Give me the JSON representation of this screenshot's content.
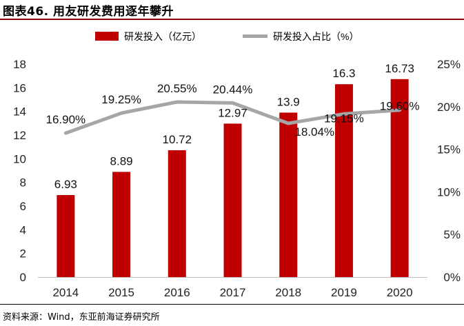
{
  "figure_title": "图表46.  用友研发费用逐年攀升",
  "source_note": "资料来源：Wind，东亚前海证券研究所",
  "chart_data": {
    "type": "bar",
    "categories": [
      "2014",
      "2015",
      "2016",
      "2017",
      "2018",
      "2019",
      "2020"
    ],
    "series": [
      {
        "name": "研发投入（亿元）",
        "type": "bar",
        "axis": "left",
        "values": [
          6.93,
          8.89,
          10.72,
          12.97,
          13.9,
          16.3,
          16.73
        ],
        "labels": [
          "6.93",
          "8.89",
          "10.72",
          "12.97",
          "13.9",
          "16.3",
          "16.73"
        ],
        "color": "#c00000"
      },
      {
        "name": "研发投入占比（%）",
        "type": "line",
        "axis": "right",
        "values": [
          16.9,
          19.25,
          20.55,
          20.44,
          18.04,
          19.15,
          19.6
        ],
        "labels": [
          "16.90%",
          "19.25%",
          "20.55%",
          "20.44%",
          "18.04%",
          "19.15%",
          "19.60%"
        ],
        "color": "#a6a6a6"
      }
    ],
    "left_axis": {
      "ylim": [
        0,
        18
      ],
      "ticks": [
        "0",
        "2",
        "4",
        "6",
        "8",
        "10",
        "12",
        "14",
        "16",
        "18"
      ]
    },
    "right_axis": {
      "ylim": [
        0,
        25
      ],
      "ticks": [
        "0%",
        "5%",
        "10%",
        "15%",
        "20%",
        "25%"
      ]
    },
    "legend_position": "top",
    "grid": false
  }
}
